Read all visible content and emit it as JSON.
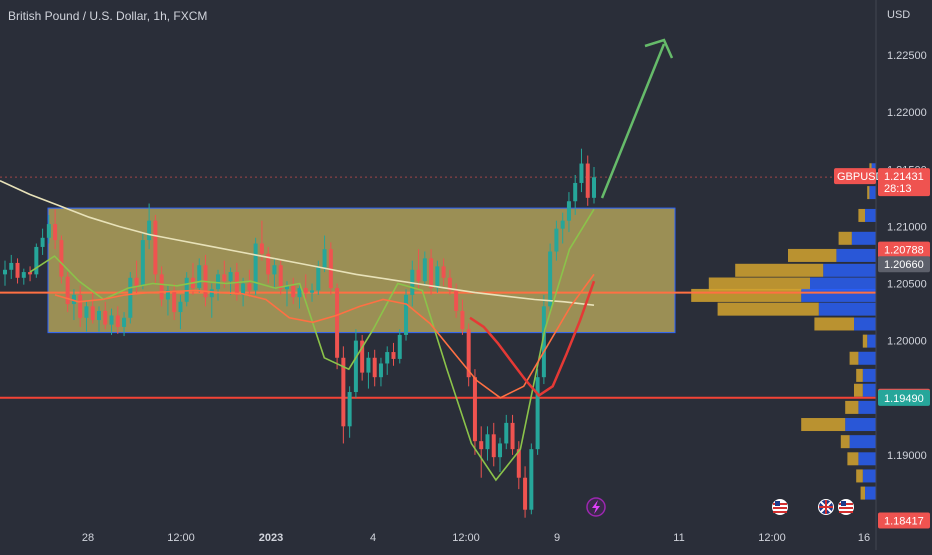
{
  "header": {
    "title": "British Pound / U.S. Dollar, 1h, FXCM"
  },
  "colors": {
    "background": "#2a2e39",
    "candle_up": "#26a69a",
    "candle_down": "#ef5350",
    "zone_fill": "#c8b560",
    "zone_border": "#2962ff",
    "ma_white": "#e8e2b9",
    "ma_green": "#8bc34a",
    "ma_red": "#e53935",
    "ma_orange": "#ff7043",
    "support_line": "#f44336",
    "arrow": "#66bb6a",
    "vp_up": "#2962ff",
    "vp_down": "#d4a32f"
  },
  "chart_data": {
    "type": "candlestick",
    "symbol": "GBPUSD",
    "currency": "USD",
    "y_ticks": [
      "1.22500",
      "1.22000",
      "1.21500",
      "1.21000",
      "1.20500",
      "1.20000",
      "1.19500",
      "1.19000"
    ],
    "x_ticks": [
      "28",
      "12:00",
      "2023",
      "4",
      "12:00",
      "9",
      "11",
      "12:00",
      "16"
    ],
    "ylim": [
      1.18417,
      1.2265
    ],
    "price_markers": [
      {
        "label": "GBPUSD",
        "value": "1.21431",
        "sub": "28:13",
        "color": "#ef5350"
      },
      {
        "label": "",
        "value": "1.20788",
        "color": "#ef5350"
      },
      {
        "label": "",
        "value": "1.20660",
        "color": "#5d606b"
      },
      {
        "label": "",
        "value": "1.19500",
        "color": "#ef5350"
      },
      {
        "label": "",
        "value": "1.19490",
        "color": "#26a69a"
      },
      {
        "label": "",
        "value": "1.18417",
        "color": "#ef5350"
      }
    ],
    "zone": {
      "top": 1.2116,
      "bottom": 1.2007
    },
    "horizontal_lines": [
      {
        "value": 1.2042,
        "color": "#ff7043"
      },
      {
        "value": 1.195,
        "color": "#f44336"
      }
    ],
    "candles": [
      [
        1.2058,
        1.207,
        1.2048,
        1.2062
      ],
      [
        1.2062,
        1.2075,
        1.2054,
        1.2068
      ],
      [
        1.2068,
        1.2072,
        1.205,
        1.2055
      ],
      [
        1.2055,
        1.2063,
        1.2049,
        1.206
      ],
      [
        1.206,
        1.2065,
        1.2052,
        1.2058
      ],
      [
        1.2058,
        1.2085,
        1.2055,
        1.2082
      ],
      [
        1.2082,
        1.2098,
        1.2075,
        1.209
      ],
      [
        1.209,
        1.211,
        1.2085,
        1.2102
      ],
      [
        1.2102,
        1.2115,
        1.208,
        1.2088
      ],
      [
        1.2088,
        1.2092,
        1.205,
        1.2056
      ],
      [
        1.2056,
        1.206,
        1.2025,
        1.2032
      ],
      [
        1.2032,
        1.2045,
        1.2018,
        1.204
      ],
      [
        1.204,
        1.2048,
        1.2012,
        1.202
      ],
      [
        1.202,
        1.2035,
        1.2008,
        1.203
      ],
      [
        1.203,
        1.2042,
        1.2015,
        1.2018
      ],
      [
        1.2018,
        1.203,
        1.2008,
        1.2026
      ],
      [
        1.2026,
        1.2034,
        1.201,
        1.2014
      ],
      [
        1.2014,
        1.2028,
        1.2005,
        1.2022
      ],
      [
        1.2022,
        1.203,
        1.2006,
        1.2012
      ],
      [
        1.2012,
        1.2025,
        1.2004,
        1.202
      ],
      [
        1.202,
        1.206,
        1.2015,
        1.2055
      ],
      [
        1.2055,
        1.207,
        1.204,
        1.2048
      ],
      [
        1.2048,
        1.2095,
        1.2045,
        1.2088
      ],
      [
        1.2088,
        1.212,
        1.208,
        1.2105
      ],
      [
        1.2105,
        1.211,
        1.205,
        1.2058
      ],
      [
        1.2058,
        1.2065,
        1.203,
        1.2036
      ],
      [
        1.2036,
        1.2048,
        1.2022,
        1.2044
      ],
      [
        1.2044,
        1.205,
        1.2018,
        1.2025
      ],
      [
        1.2025,
        1.204,
        1.201,
        1.2034
      ],
      [
        1.2034,
        1.206,
        1.203,
        1.2055
      ],
      [
        1.2055,
        1.2068,
        1.204,
        1.2046
      ],
      [
        1.2046,
        1.2072,
        1.2042,
        1.2066
      ],
      [
        1.2066,
        1.2075,
        1.203,
        1.2038
      ],
      [
        1.2038,
        1.205,
        1.202,
        1.2045
      ],
      [
        1.2045,
        1.2062,
        1.2035,
        1.2058
      ],
      [
        1.2058,
        1.207,
        1.2046,
        1.2052
      ],
      [
        1.2052,
        1.2064,
        1.204,
        1.206
      ],
      [
        1.206,
        1.2068,
        1.2035,
        1.204
      ],
      [
        1.204,
        1.2055,
        1.203,
        1.205
      ],
      [
        1.205,
        1.2062,
        1.2038,
        1.2044
      ],
      [
        1.2044,
        1.209,
        1.204,
        1.2085
      ],
      [
        1.2085,
        1.2105,
        1.207,
        1.2076
      ],
      [
        1.2076,
        1.2082,
        1.205,
        1.2058
      ],
      [
        1.2058,
        1.2072,
        1.2045,
        1.2066
      ],
      [
        1.2066,
        1.207,
        1.204,
        1.2045
      ],
      [
        1.2045,
        1.2052,
        1.203,
        1.2048
      ],
      [
        1.2048,
        1.2055,
        1.2032,
        1.2038
      ],
      [
        1.2038,
        1.205,
        1.2028,
        1.2046
      ],
      [
        1.2046,
        1.2058,
        1.2036,
        1.2042
      ],
      [
        1.2042,
        1.205,
        1.2034,
        1.2044
      ],
      [
        1.2044,
        1.207,
        1.204,
        1.2064
      ],
      [
        1.2064,
        1.2092,
        1.206,
        1.208
      ],
      [
        1.208,
        1.2086,
        1.204,
        1.2046
      ],
      [
        1.2046,
        1.205,
        1.1975,
        1.1985
      ],
      [
        1.1985,
        1.1995,
        1.191,
        1.1925
      ],
      [
        1.1925,
        1.196,
        1.1915,
        1.1955
      ],
      [
        1.1955,
        1.201,
        1.195,
        1.2
      ],
      [
        1.2,
        1.2005,
        1.1965,
        1.1972
      ],
      [
        1.1972,
        1.199,
        1.1958,
        1.1985
      ],
      [
        1.1985,
        1.1992,
        1.196,
        1.1968
      ],
      [
        1.1968,
        1.1985,
        1.196,
        1.198
      ],
      [
        1.198,
        1.1995,
        1.197,
        1.199
      ],
      [
        1.199,
        1.1998,
        1.1978,
        1.1984
      ],
      [
        1.1984,
        1.201,
        1.198,
        1.2005
      ],
      [
        1.2005,
        1.2045,
        1.2,
        1.204
      ],
      [
        1.204,
        1.207,
        1.203,
        1.2062
      ],
      [
        1.2062,
        1.208,
        1.2045,
        1.2052
      ],
      [
        1.2052,
        1.2078,
        1.2048,
        1.2072
      ],
      [
        1.2072,
        1.208,
        1.204,
        1.2046
      ],
      [
        1.2046,
        1.207,
        1.2042,
        1.2065
      ],
      [
        1.2065,
        1.2072,
        1.2048,
        1.2055
      ],
      [
        1.2055,
        1.2062,
        1.204,
        1.2044
      ],
      [
        1.2044,
        1.205,
        1.202,
        1.2026
      ],
      [
        1.2026,
        1.2036,
        1.2005,
        1.201
      ],
      [
        1.201,
        1.2015,
        1.196,
        1.1968
      ],
      [
        1.1968,
        1.1975,
        1.19,
        1.1912
      ],
      [
        1.1912,
        1.1925,
        1.188,
        1.1905
      ],
      [
        1.1905,
        1.1925,
        1.1895,
        1.1918
      ],
      [
        1.1918,
        1.1928,
        1.189,
        1.1898
      ],
      [
        1.1898,
        1.1915,
        1.1885,
        1.191
      ],
      [
        1.191,
        1.1935,
        1.1905,
        1.1928
      ],
      [
        1.1928,
        1.1935,
        1.19,
        1.1905
      ],
      [
        1.1905,
        1.1912,
        1.187,
        1.188
      ],
      [
        1.188,
        1.189,
        1.1845,
        1.1852
      ],
      [
        1.1852,
        1.191,
        1.1848,
        1.1905
      ],
      [
        1.1905,
        1.1975,
        1.19,
        1.1968
      ],
      [
        1.1968,
        1.204,
        1.1962,
        1.203
      ],
      [
        1.203,
        1.2085,
        1.2025,
        1.2078
      ],
      [
        1.2078,
        1.2105,
        1.207,
        1.2098
      ],
      [
        1.2098,
        1.2112,
        1.2085,
        1.2105
      ],
      [
        1.2105,
        1.213,
        1.2095,
        1.2122
      ],
      [
        1.2122,
        1.2145,
        1.211,
        1.2138
      ],
      [
        1.2138,
        1.2168,
        1.213,
        1.2155
      ],
      [
        1.2155,
        1.2162,
        1.2118,
        1.2125
      ],
      [
        1.2125,
        1.2152,
        1.212,
        1.2143
      ]
    ],
    "series": [
      {
        "color": "#e8e2b9",
        "values": [
          1.214,
          1.2128,
          1.2118,
          1.2108,
          1.21,
          1.2093,
          1.2088,
          1.2083,
          1.2078,
          1.2073,
          1.2068,
          1.2063,
          1.2058,
          1.2054,
          1.205,
          1.2046,
          1.2042,
          1.2039,
          1.2036,
          1.2034,
          1.2031
        ]
      },
      {
        "color": "#8bc34a",
        "values": [
          1.206,
          1.2074,
          1.2052,
          1.2036,
          1.2046,
          1.205,
          1.2048,
          1.2052,
          1.205,
          1.2052,
          1.2046,
          1.205,
          1.1985,
          1.1975,
          1.201,
          1.205,
          1.2044,
          1.1975,
          1.191,
          1.1878,
          1.1905,
          1.201,
          1.208,
          1.2115
        ]
      },
      {
        "color": "#ff7043",
        "values": [
          1.204,
          1.2034,
          1.2036,
          1.204,
          1.2042,
          1.2043,
          1.2044,
          1.2042,
          1.2041,
          1.2036,
          1.202,
          1.2016,
          1.2022,
          1.203,
          1.2036,
          1.2032,
          1.2015,
          1.199,
          1.1965,
          1.195,
          1.196,
          1.1995,
          1.203,
          1.2058
        ]
      },
      {
        "color": "#e53935",
        "values": [
          1.202,
          1.2012,
          1.1998,
          1.1982,
          1.1966,
          1.1952,
          1.196,
          1.1988,
          1.2018,
          1.2052
        ]
      }
    ],
    "volume_profile": [
      {
        "price": 1.215,
        "up": 2,
        "down": 1
      },
      {
        "price": 1.213,
        "up": 3,
        "down": 1
      },
      {
        "price": 1.211,
        "up": 5,
        "down": 3
      },
      {
        "price": 1.209,
        "up": 11,
        "down": 6
      },
      {
        "price": 1.2075,
        "up": 18,
        "down": 22
      },
      {
        "price": 1.2062,
        "up": 24,
        "down": 40
      },
      {
        "price": 1.205,
        "up": 30,
        "down": 46
      },
      {
        "price": 1.204,
        "up": 34,
        "down": 50
      },
      {
        "price": 1.2028,
        "up": 26,
        "down": 46
      },
      {
        "price": 1.2015,
        "up": 10,
        "down": 18
      },
      {
        "price": 1.2,
        "up": 4,
        "down": 2
      },
      {
        "price": 1.1985,
        "up": 8,
        "down": 4
      },
      {
        "price": 1.197,
        "up": 6,
        "down": 3
      },
      {
        "price": 1.1957,
        "up": 6,
        "down": 4
      },
      {
        "price": 1.1942,
        "up": 8,
        "down": 6
      },
      {
        "price": 1.1927,
        "up": 14,
        "down": 20
      },
      {
        "price": 1.1912,
        "up": 12,
        "down": 4
      },
      {
        "price": 1.1897,
        "up": 8,
        "down": 5
      },
      {
        "price": 1.1882,
        "up": 6,
        "down": 3
      },
      {
        "price": 1.1867,
        "up": 5,
        "down": 2
      }
    ]
  }
}
